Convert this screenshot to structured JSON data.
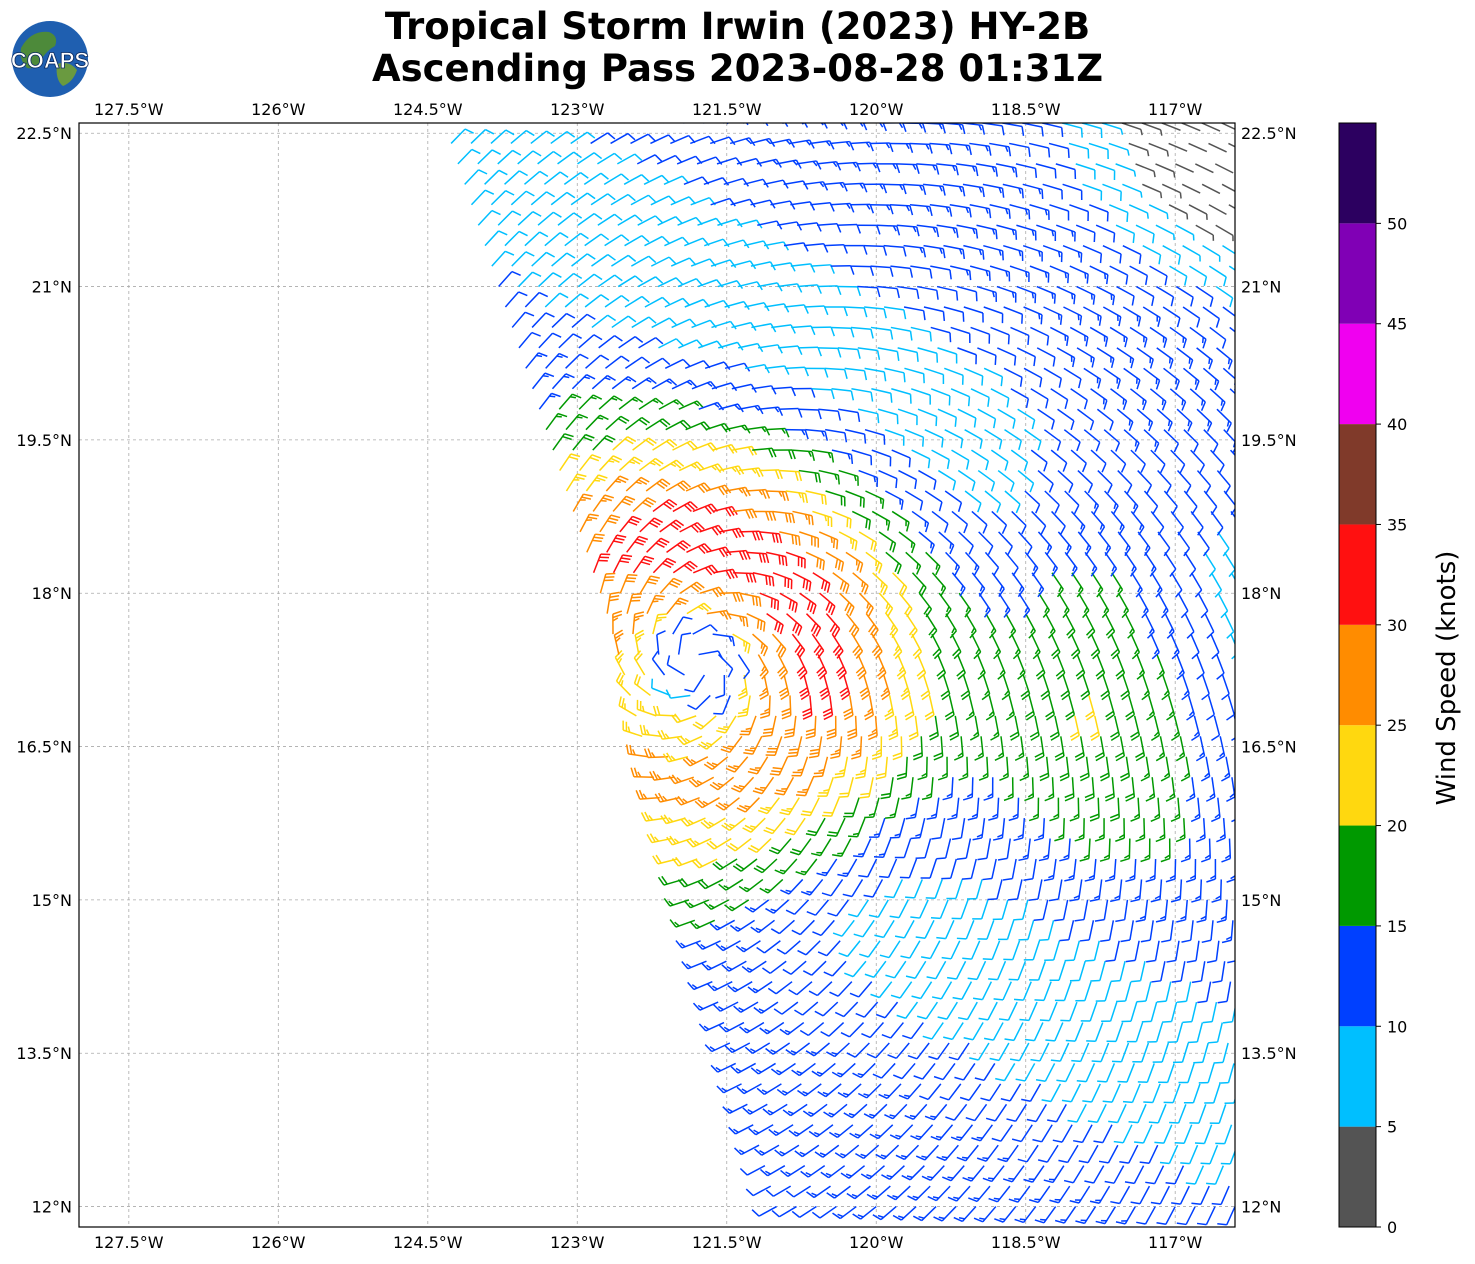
{
  "title_line1": "Tropical Storm Irwin (2023) HY-2B",
  "title_line2": "Ascending Pass 2023-08-28 01:31Z",
  "logo_text": "COAPS",
  "map": {
    "lon_range": [
      -128,
      -116.4
    ],
    "lat_range": [
      11.8,
      22.6
    ],
    "lon_ticks": [
      {
        "value": -127.5,
        "label": "127.5°W"
      },
      {
        "value": -126,
        "label": "126°W"
      },
      {
        "value": -124.5,
        "label": "124.5°W"
      },
      {
        "value": -123,
        "label": "123°W"
      },
      {
        "value": -121.5,
        "label": "121.5°W"
      },
      {
        "value": -120,
        "label": "120°W"
      },
      {
        "value": -118.5,
        "label": "118.5°W"
      },
      {
        "value": -117,
        "label": "117°W"
      }
    ],
    "lat_ticks": [
      {
        "value": 22.5,
        "label": "22.5°N"
      },
      {
        "value": 21,
        "label": "21°N"
      },
      {
        "value": 19.5,
        "label": "19.5°N"
      },
      {
        "value": 18,
        "label": "18°N"
      },
      {
        "value": 16.5,
        "label": "16.5°N"
      },
      {
        "value": 15,
        "label": "15°N"
      },
      {
        "value": 13.5,
        "label": "13.5°N"
      },
      {
        "value": 12,
        "label": "12°N"
      }
    ],
    "grid": true,
    "storm_center": {
      "lon": -121.8,
      "lat": 17.3
    },
    "swath": "right side of map, west edge slanting from about 124.3°W at 22.5°N to about 122.7°W at 17.8°N and back east to about 121°W at 12°N"
  },
  "colorbar": {
    "label": "Wind Speed (knots)",
    "ticks": [
      "0",
      "5",
      "10",
      "15",
      "20",
      "25",
      "30",
      "35",
      "40",
      "45",
      "50"
    ],
    "bins": [
      {
        "min": 0,
        "max": 5,
        "color": "#545454"
      },
      {
        "min": 5,
        "max": 10,
        "color": "#00bfff"
      },
      {
        "min": 10,
        "max": 15,
        "color": "#0040ff"
      },
      {
        "min": 15,
        "max": 20,
        "color": "#009900"
      },
      {
        "min": 20,
        "max": 25,
        "color": "#ffd80f"
      },
      {
        "min": 25,
        "max": 30,
        "color": "#ff8c00"
      },
      {
        "min": 30,
        "max": 35,
        "color": "#ff1010"
      },
      {
        "min": 35,
        "max": 40,
        "color": "#803a2a"
      },
      {
        "min": 40,
        "max": 45,
        "color": "#f000f0"
      },
      {
        "min": 45,
        "max": 50,
        "color": "#8000b5"
      },
      {
        "min": 50,
        "max": 55,
        "color": "#2c0060"
      }
    ]
  }
}
